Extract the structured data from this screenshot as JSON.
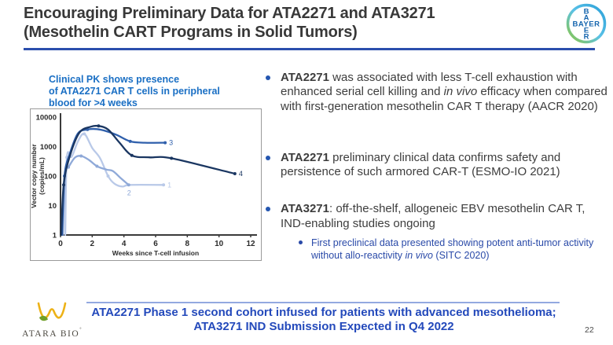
{
  "header": {
    "title_line1": "Encouraging Preliminary Data for ATA2271 and ATA3271",
    "title_line2": "(Mesothelin CART Programs in Solid Tumors)",
    "accent_color": "#2b4fad"
  },
  "logos": {
    "bayer": {
      "horizontal": "BAYER",
      "vertical_letters": [
        "B",
        "A",
        "E",
        "R"
      ]
    },
    "atara": {
      "name": "ATARA BIO",
      "mark": "˚"
    }
  },
  "chart": {
    "caption": "Clinical PK shows presence\nof ATA2271 CAR T cells in peripheral\nblood for >4 weeks"
  },
  "chart_data": {
    "type": "line",
    "title": "Clinical PK shows presence of ATA2271 CAR T cells in peripheral blood for >4 weeks",
    "xlabel": "Weeks since T-cell infusion",
    "ylabel_line1": "Vector copy number",
    "ylabel_line2": "(copies/mL)",
    "y_scale": "log",
    "xlim": [
      0,
      12
    ],
    "ylim": [
      1,
      10000
    ],
    "x_ticks": [
      0,
      2,
      4,
      6,
      8,
      10,
      12
    ],
    "y_ticks": [
      1,
      10,
      100,
      1000,
      10000
    ],
    "grid": false,
    "legend": "end-of-line patient numbers",
    "series": [
      {
        "name": "1",
        "color": "#b9c9e8",
        "points": [
          [
            0.3,
            1
          ],
          [
            0.4,
            430
          ],
          [
            0.7,
            450
          ],
          [
            1.1,
            1500
          ],
          [
            1.5,
            2700
          ],
          [
            2.0,
            900
          ],
          [
            2.5,
            400
          ],
          [
            3.0,
            100
          ],
          [
            3.4,
            55
          ],
          [
            3.9,
            44
          ],
          [
            4.4,
            50
          ],
          [
            6.5,
            50
          ]
        ],
        "marker_idx": [
          1,
          4,
          7,
          11
        ],
        "label_offset": [
          5,
          3
        ]
      },
      {
        "name": "2",
        "color": "#8fa9d8",
        "points": [
          [
            0.15,
            1
          ],
          [
            0.3,
            140
          ],
          [
            0.5,
            200
          ],
          [
            0.9,
            420
          ],
          [
            1.3,
            480
          ],
          [
            1.8,
            350
          ],
          [
            2.3,
            215
          ],
          [
            2.9,
            165
          ],
          [
            3.3,
            148
          ],
          [
            3.8,
            85
          ],
          [
            4.3,
            50
          ]
        ],
        "marker_idx": [
          2,
          4,
          6,
          10
        ],
        "label_offset": [
          -2,
          13
        ]
      },
      {
        "name": "3",
        "color": "#3060ac",
        "points": [
          [
            0.1,
            1
          ],
          [
            0.25,
            100
          ],
          [
            0.6,
            600
          ],
          [
            1.1,
            2800
          ],
          [
            1.7,
            3800
          ],
          [
            2.3,
            3900
          ],
          [
            3.0,
            3200
          ],
          [
            3.6,
            2400
          ],
          [
            4.4,
            1500
          ],
          [
            5.3,
            1350
          ],
          [
            6.6,
            1350
          ]
        ],
        "marker_idx": [
          1,
          4,
          8,
          10
        ],
        "label_offset": [
          5,
          3
        ]
      },
      {
        "name": "4",
        "color": "#1a3661",
        "points": [
          [
            0.05,
            1
          ],
          [
            0.2,
            50
          ],
          [
            0.6,
            500
          ],
          [
            1.2,
            3000
          ],
          [
            1.9,
            4700
          ],
          [
            2.4,
            5000
          ],
          [
            3.0,
            3800
          ],
          [
            3.7,
            1400
          ],
          [
            4.5,
            500
          ],
          [
            5.6,
            430
          ],
          [
            7.0,
            400
          ],
          [
            11.0,
            120
          ]
        ],
        "marker_idx": [
          1,
          5,
          8,
          10,
          11
        ],
        "label_offset": [
          5,
          3
        ]
      }
    ]
  },
  "bullets": [
    {
      "level": 1,
      "runs": [
        {
          "t": "ATA2271",
          "b": 1
        },
        {
          "t": " was associated with less T-cell exhaustion with enhanced serial cell killing and "
        },
        {
          "t": "in vivo",
          "i": 1
        },
        {
          "t": " efficacy when compared with first-generation mesothelin CAR T therapy (AACR 2020)"
        }
      ]
    },
    {
      "level": 1,
      "runs": [
        {
          "t": "ATA2271",
          "b": 1
        },
        {
          "t": " preliminary clinical data confirms safety and persistence of such armored CAR-T (ESMO-IO 2021)"
        }
      ]
    },
    {
      "level": 1,
      "runs": [
        {
          "t": "ATA3271",
          "b": 1
        },
        {
          "t": ": off-the-shelf, allogeneic EBV mesothelin CAR T, IND-enabling studies ongoing"
        }
      ]
    },
    {
      "level": 2,
      "runs": [
        {
          "t": "First preclinical data presented showing potent anti-tumor activity without allo-reactivity "
        },
        {
          "t": "in vivo",
          "i": 1
        },
        {
          "t": " (SITC 2020)"
        }
      ]
    }
  ],
  "footer": {
    "banner_line1": "ATA2271 Phase 1 second cohort infused for patients with advanced mesothelioma;",
    "banner_line2": "ATA3271 IND Submission Expected in Q4 2022",
    "page_number": "22"
  }
}
